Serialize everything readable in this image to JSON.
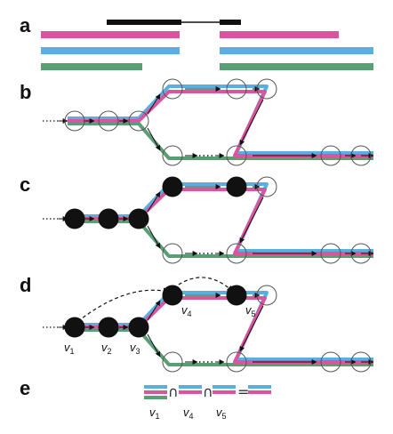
{
  "panels": [
    "a",
    "b",
    "c",
    "d",
    "e"
  ],
  "node_labels": {
    "v1": {
      "base": "v",
      "sub": "1"
    },
    "v2": {
      "base": "v",
      "sub": "2"
    },
    "v3": {
      "base": "v",
      "sub": "3"
    },
    "v4": {
      "base": "v",
      "sub": "4"
    },
    "v5": {
      "base": "v",
      "sub": "5"
    }
  },
  "equation": {
    "intersect": "∩",
    "equals": "=",
    "labels": [
      {
        "base": "v",
        "sub": "1"
      },
      {
        "base": "v",
        "sub": "4"
      },
      {
        "base": "v",
        "sub": "5"
      }
    ]
  },
  "colors": {
    "pink": "#d9559f",
    "blue": "#5aaee0",
    "green": "#5a9e74",
    "black": "#111111",
    "node_stroke": "#555555"
  }
}
